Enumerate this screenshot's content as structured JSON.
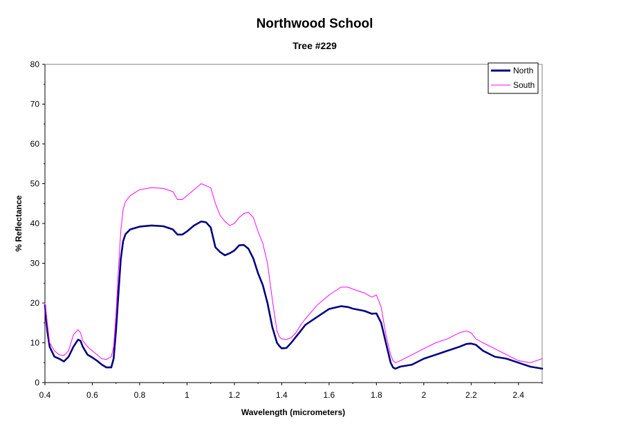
{
  "chart_data": {
    "type": "line",
    "title": "Northwood School",
    "subtitle": "Tree #229",
    "xlabel": "Wavelength (micrometers)",
    "ylabel": "% Reflectance",
    "xlim": [
      0.4,
      2.5
    ],
    "ylim": [
      0,
      80
    ],
    "x_ticks": [
      "0.4",
      "0.6",
      "0.8",
      "1",
      "1.2",
      "1.4",
      "1.6",
      "1.8",
      "2",
      "2.2",
      "2.4"
    ],
    "x_tick_values": [
      0.4,
      0.6,
      0.8,
      1.0,
      1.2,
      1.4,
      1.6,
      1.8,
      2.0,
      2.2,
      2.4
    ],
    "y_ticks": [
      "0",
      "10",
      "20",
      "30",
      "40",
      "50",
      "60",
      "70",
      "80"
    ],
    "y_tick_values": [
      0,
      10,
      20,
      30,
      40,
      50,
      60,
      70,
      80
    ],
    "grid": false,
    "legend_position": "top-right",
    "series": [
      {
        "name": "North",
        "color": "#000080",
        "x": [
          0.4,
          0.41,
          0.42,
          0.44,
          0.46,
          0.48,
          0.5,
          0.52,
          0.54,
          0.55,
          0.56,
          0.58,
          0.6,
          0.62,
          0.64,
          0.66,
          0.68,
          0.69,
          0.7,
          0.71,
          0.72,
          0.73,
          0.74,
          0.76,
          0.8,
          0.85,
          0.9,
          0.94,
          0.96,
          0.98,
          1.0,
          1.03,
          1.06,
          1.08,
          1.1,
          1.12,
          1.14,
          1.16,
          1.18,
          1.2,
          1.22,
          1.24,
          1.26,
          1.28,
          1.3,
          1.32,
          1.34,
          1.36,
          1.38,
          1.39,
          1.4,
          1.42,
          1.44,
          1.46,
          1.48,
          1.5,
          1.55,
          1.6,
          1.65,
          1.68,
          1.7,
          1.75,
          1.78,
          1.8,
          1.82,
          1.84,
          1.86,
          1.87,
          1.88,
          1.9,
          1.95,
          2.0,
          2.05,
          2.1,
          2.15,
          2.18,
          2.2,
          2.22,
          2.25,
          2.3,
          2.35,
          2.4,
          2.45,
          2.5
        ],
        "values": [
          19.5,
          13,
          9,
          6.5,
          6,
          5.3,
          6.5,
          9,
          10.8,
          10.5,
          9,
          7,
          6.3,
          5.5,
          4.5,
          3.8,
          3.8,
          6,
          13,
          22,
          31,
          35.5,
          37.3,
          38.5,
          39.2,
          39.5,
          39.3,
          38.5,
          37.2,
          37.2,
          38,
          39.5,
          40.5,
          40.3,
          39,
          34,
          32.8,
          32,
          32.5,
          33.2,
          34.5,
          34.6,
          33.6,
          31.2,
          27.5,
          24.5,
          20,
          14,
          10,
          9.2,
          8.6,
          8.7,
          10,
          11.5,
          13,
          14.5,
          16.5,
          18.5,
          19.2,
          19,
          18.6,
          18,
          17.3,
          17.4,
          15,
          10,
          5,
          3.8,
          3.5,
          4,
          4.5,
          6,
          7,
          8,
          9,
          9.7,
          9.8,
          9.5,
          8,
          6.5,
          6,
          5,
          4,
          3.5
        ]
      },
      {
        "name": "South",
        "color": "#ff00ff",
        "x": [
          0.4,
          0.41,
          0.42,
          0.44,
          0.46,
          0.48,
          0.5,
          0.52,
          0.54,
          0.55,
          0.56,
          0.58,
          0.6,
          0.62,
          0.64,
          0.66,
          0.68,
          0.69,
          0.7,
          0.71,
          0.72,
          0.73,
          0.74,
          0.76,
          0.8,
          0.85,
          0.9,
          0.94,
          0.96,
          0.98,
          1.0,
          1.03,
          1.06,
          1.08,
          1.1,
          1.12,
          1.14,
          1.16,
          1.18,
          1.2,
          1.22,
          1.24,
          1.26,
          1.28,
          1.3,
          1.32,
          1.34,
          1.36,
          1.38,
          1.39,
          1.4,
          1.42,
          1.44,
          1.46,
          1.48,
          1.5,
          1.55,
          1.6,
          1.65,
          1.68,
          1.7,
          1.75,
          1.78,
          1.8,
          1.82,
          1.84,
          1.86,
          1.87,
          1.88,
          1.9,
          1.95,
          2.0,
          2.05,
          2.1,
          2.15,
          2.18,
          2.2,
          2.22,
          2.25,
          2.3,
          2.35,
          2.4,
          2.45,
          2.5
        ],
        "values": [
          20,
          15,
          10,
          8,
          7,
          6.8,
          8,
          12,
          13.3,
          12.5,
          10.5,
          9,
          8,
          7,
          6,
          5.8,
          6.5,
          9,
          17,
          28,
          38,
          43.5,
          45.5,
          47,
          48.5,
          49,
          48.8,
          48,
          46,
          46,
          47,
          48.5,
          50,
          49.5,
          49,
          45,
          42,
          40.5,
          39.5,
          40,
          41.5,
          42.5,
          42.8,
          41.5,
          38,
          35,
          30,
          21,
          13,
          11.5,
          11,
          10.8,
          11.3,
          12.5,
          14.5,
          16,
          19.5,
          22,
          24,
          24,
          23.5,
          22.5,
          21.5,
          22,
          19,
          12,
          7,
          5.5,
          5,
          5.5,
          7,
          8.5,
          10,
          11,
          12.5,
          13,
          12.5,
          11,
          10,
          8.5,
          7,
          5.5,
          5,
          6
        ]
      }
    ]
  }
}
